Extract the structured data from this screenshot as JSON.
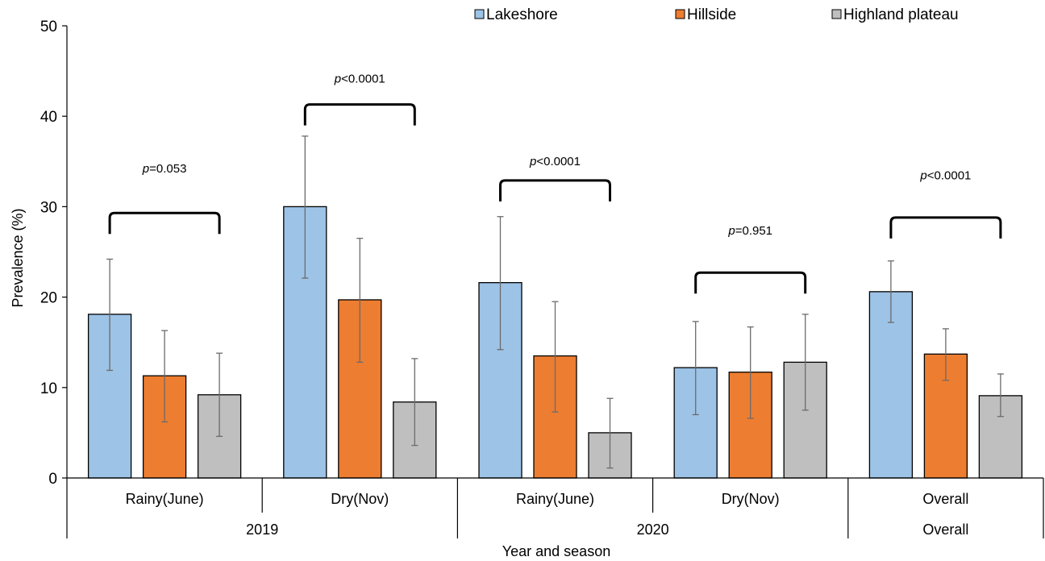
{
  "chart_data": {
    "type": "bar",
    "ylabel": "Prevalence (%)",
    "xlabel": "Year and season",
    "ylim": [
      0,
      50
    ],
    "yticks": [
      0,
      10,
      20,
      30,
      40,
      50
    ],
    "categories": [
      "Rainy(June)",
      "Dry(Nov)",
      "Rainy(June)",
      "Dry(Nov)",
      "Overall"
    ],
    "groups": [
      {
        "label": "2019",
        "span": [
          0,
          1
        ]
      },
      {
        "label": "2020",
        "span": [
          2,
          3
        ]
      },
      {
        "label": "Overall",
        "span": [
          4,
          4
        ]
      }
    ],
    "series": [
      {
        "name": "Lakeshore",
        "color": "#9DC3E6",
        "values": [
          18.1,
          30.0,
          21.6,
          12.2,
          20.6
        ],
        "err_low": [
          11.9,
          22.1,
          14.2,
          7.0,
          17.2
        ],
        "err_high": [
          24.2,
          37.8,
          28.9,
          17.3,
          24.0
        ]
      },
      {
        "name": "Hillside",
        "color": "#ED7D31",
        "values": [
          11.3,
          19.7,
          13.5,
          11.7,
          13.7
        ],
        "err_low": [
          6.2,
          12.8,
          7.3,
          6.6,
          10.8
        ],
        "err_high": [
          16.3,
          26.5,
          19.5,
          16.7,
          16.5
        ]
      },
      {
        "name": "Highland plateau",
        "color": "#BFBFBF",
        "values": [
          9.2,
          8.4,
          5.0,
          12.8,
          9.1
        ],
        "err_low": [
          4.6,
          3.6,
          1.1,
          7.5,
          6.8
        ],
        "err_high": [
          13.8,
          13.2,
          8.8,
          18.1,
          11.5
        ]
      }
    ],
    "annotations": [
      {
        "prefix": "p",
        "value": "=0.053",
        "bracket_y": 29.3,
        "text_y": 33.8
      },
      {
        "prefix": "p",
        "value": "<0.0001",
        "bracket_y": 41.3,
        "text_y": 43.7
      },
      {
        "prefix": "p",
        "value": "<0.0001",
        "bracket_y": 32.9,
        "text_y": 34.6
      },
      {
        "prefix": "p",
        "value": "=0.951",
        "bracket_y": 22.7,
        "text_y": 26.9
      },
      {
        "prefix": "p",
        "value": "<0.0001",
        "bracket_y": 28.8,
        "text_y": 33.0
      }
    ],
    "legend": {
      "position": "top-right"
    },
    "grid": false
  }
}
